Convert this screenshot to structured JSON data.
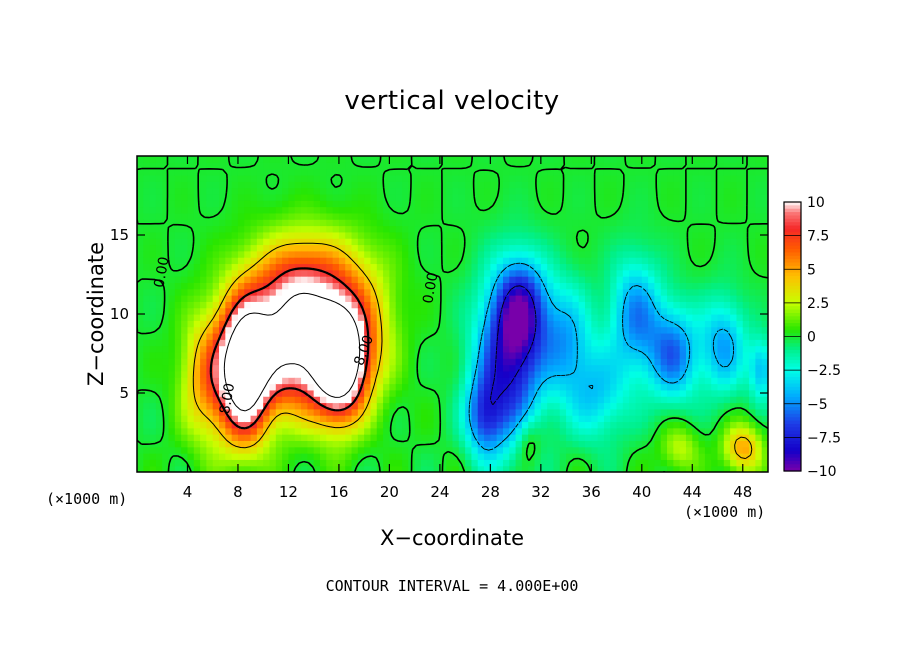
{
  "chart_data": {
    "type": "heatmap",
    "title": "vertical velocity",
    "xlabel": "X−coordinate",
    "ylabel": "Z−coordinate",
    "x_unit": "(×1000 m)",
    "xlim": [
      0,
      50
    ],
    "ylim": [
      0,
      20
    ],
    "x_ticks": [
      4,
      8,
      12,
      16,
      20,
      24,
      28,
      32,
      36,
      40,
      44,
      48
    ],
    "y_ticks": [
      5,
      10,
      15
    ],
    "colorbar": {
      "ticks": [
        10,
        7.5,
        5,
        2.5,
        0,
        -2.5,
        -5,
        -7.5,
        -10
      ],
      "tick_labels": [
        "10",
        "7.5",
        "5",
        "2.5",
        "0",
        "−2.5",
        "−5",
        "−7.5",
        "−10"
      ],
      "range": [
        -10,
        10
      ]
    },
    "contour_labels": [
      "0.00",
      "0.00",
      "8.00",
      "8.00"
    ],
    "contour_interval_text": "CONTOUR INTERVAL =  4.000E+00",
    "features": [
      {
        "kind": "updraft",
        "x": 8.5,
        "z": 6.5,
        "amp": 15,
        "sx": 2.0,
        "sz": 4.2
      },
      {
        "kind": "updraft",
        "x": 12.5,
        "z": 8.5,
        "amp": 13,
        "sx": 3.5,
        "sz": 4.2
      },
      {
        "kind": "updraft",
        "x": 16.0,
        "z": 7.0,
        "amp": 14,
        "sx": 2.0,
        "sz": 3.5
      },
      {
        "kind": "updraft",
        "x": 14.0,
        "z": 12.5,
        "amp": 4,
        "sx": 4.5,
        "sz": 3.0
      },
      {
        "kind": "updraft",
        "x": 5.5,
        "z": 6.0,
        "amp": 5,
        "sx": 2.0,
        "sz": 4.0
      },
      {
        "kind": "updraft",
        "x": 18.0,
        "z": 8.5,
        "amp": 4,
        "sx": 2.5,
        "sz": 4.0
      },
      {
        "kind": "downdraft",
        "x": 29.5,
        "z": 7.0,
        "amp": -8,
        "sx": 2.6,
        "sz": 5.0
      },
      {
        "kind": "downdraft",
        "x": 30.5,
        "z": 10.5,
        "amp": -6,
        "sx": 2.0,
        "sz": 3.0
      },
      {
        "kind": "downdraft",
        "x": 27.5,
        "z": 3.5,
        "amp": -5,
        "sx": 1.5,
        "sz": 2.5
      },
      {
        "kind": "downdraft",
        "x": 34.0,
        "z": 8.5,
        "amp": -4,
        "sx": 2.0,
        "sz": 3.5
      },
      {
        "kind": "downdraft",
        "x": 39.5,
        "z": 10.0,
        "amp": -5,
        "sx": 2.0,
        "sz": 3.5
      },
      {
        "kind": "downdraft",
        "x": 42.5,
        "z": 7.5,
        "amp": -5.5,
        "sx": 2.0,
        "sz": 3.0
      },
      {
        "kind": "downdraft",
        "x": 46.5,
        "z": 8.0,
        "amp": -4.5,
        "sx": 1.8,
        "sz": 3.0
      },
      {
        "kind": "downdraft",
        "x": 36.5,
        "z": 5.0,
        "amp": -3.5,
        "sx": 2.5,
        "sz": 3.0
      },
      {
        "kind": "downdraft",
        "x": 49.5,
        "z": 6.5,
        "amp": -4,
        "sx": 1.0,
        "sz": 2.0
      },
      {
        "kind": "updraft",
        "x": 48.0,
        "z": 1.5,
        "amp": 5,
        "sx": 1.5,
        "sz": 1.5
      },
      {
        "kind": "updraft",
        "x": 43.0,
        "z": 1.5,
        "amp": 2.5,
        "sx": 1.5,
        "sz": 1.5
      },
      {
        "kind": "updraft",
        "x": 31.0,
        "z": 2.0,
        "amp": 2,
        "sx": 1.0,
        "sz": 1.5
      }
    ]
  }
}
